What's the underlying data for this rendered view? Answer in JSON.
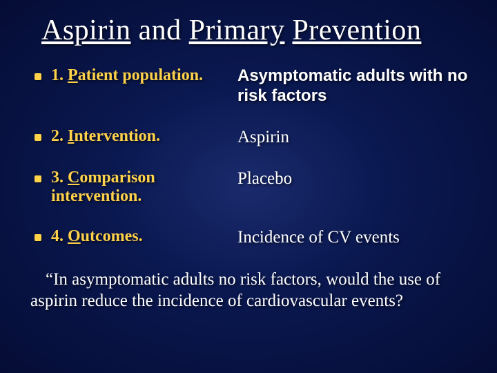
{
  "colors": {
    "background_center": "#1a2a6c",
    "background_edge": "#050d35",
    "accent": "#ffd24a",
    "text": "#ffffff"
  },
  "title_parts": {
    "t1": "Aspirin",
    "t2": " and ",
    "t3": "Primary",
    "t4": " ",
    "t5": "Prevention"
  },
  "pico": [
    {
      "num": "1. ",
      "key": "P",
      "rest": "atient population.",
      "answer": "Asymptomatic adults with no risk factors",
      "answer_font": "sans"
    },
    {
      "num": "2. ",
      "key": "I",
      "rest": "ntervention.",
      "answer": "Aspirin",
      "answer_font": "serif"
    },
    {
      "num": "3. ",
      "key": "C",
      "rest": "omparison intervention.",
      "answer": "Placebo",
      "answer_font": "serif"
    },
    {
      "num": "4. ",
      "key": "O",
      "rest": "utcomes.",
      "answer": "Incidence of CV events",
      "answer_font": "serif"
    }
  ],
  "question_lead": "“In asymptomatic adults no risk factors,  would the use of aspirin reduce the incidence of cardiovascular events?"
}
